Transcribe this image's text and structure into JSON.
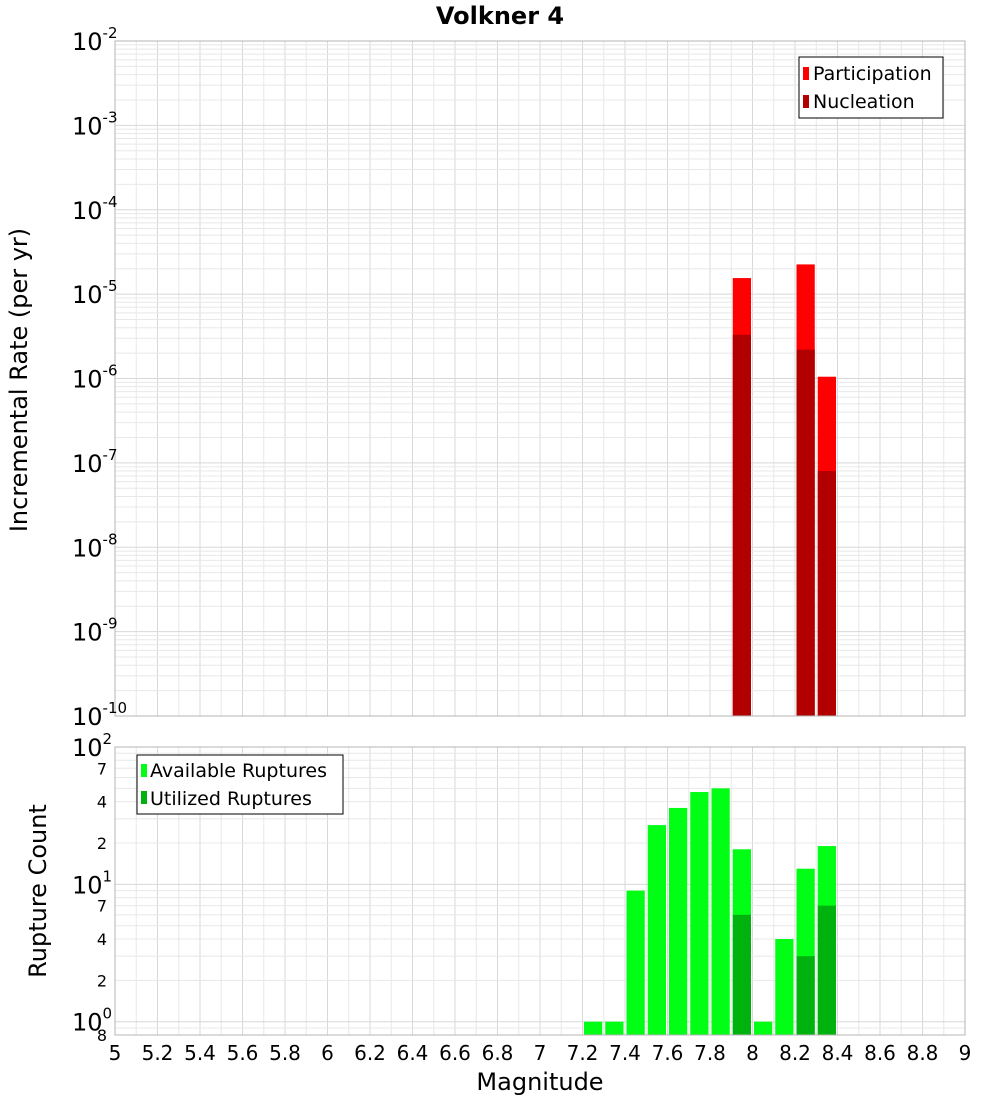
{
  "chart_data": [
    {
      "type": "bar",
      "title": "Volkner 4",
      "xlabel": "",
      "ylabel": "Incremental Rate (per yr)",
      "y_scale": "log",
      "ylim": [
        1e-10,
        0.01
      ],
      "xlim": [
        5,
        9
      ],
      "bin_width": 0.1,
      "grid": true,
      "legend_position": "top-right",
      "series": [
        {
          "name": "Participation",
          "color": "#ff0000",
          "points": [
            {
              "x": 7.95,
              "y": 1.55e-05
            },
            {
              "x": 8.25,
              "y": 2.25e-05
            },
            {
              "x": 8.35,
              "y": 1.05e-06
            }
          ]
        },
        {
          "name": "Nucleation",
          "color": "#b20000",
          "points": [
            {
              "x": 7.95,
              "y": 3.3e-06
            },
            {
              "x": 8.25,
              "y": 2.2e-06
            },
            {
              "x": 8.35,
              "y": 8e-08
            }
          ]
        }
      ]
    },
    {
      "type": "bar",
      "title": "",
      "xlabel": "Magnitude",
      "ylabel": "Rupture Count",
      "y_scale": "log",
      "ylim": [
        0.8,
        100
      ],
      "xlim": [
        5,
        9
      ],
      "bin_width": 0.1,
      "grid": true,
      "legend_position": "top-left",
      "series": [
        {
          "name": "Available Ruptures",
          "color": "#00ff14",
          "points": [
            {
              "x": 7.25,
              "y": 1
            },
            {
              "x": 7.35,
              "y": 1
            },
            {
              "x": 7.45,
              "y": 9
            },
            {
              "x": 7.55,
              "y": 27
            },
            {
              "x": 7.65,
              "y": 36
            },
            {
              "x": 7.75,
              "y": 47
            },
            {
              "x": 7.85,
              "y": 50
            },
            {
              "x": 7.95,
              "y": 18
            },
            {
              "x": 8.05,
              "y": 1
            },
            {
              "x": 8.15,
              "y": 4
            },
            {
              "x": 8.25,
              "y": 13
            },
            {
              "x": 8.35,
              "y": 19
            }
          ]
        },
        {
          "name": "Utilized Ruptures",
          "color": "#00b20e",
          "points": [
            {
              "x": 7.95,
              "y": 6
            },
            {
              "x": 8.25,
              "y": 3
            },
            {
              "x": 8.35,
              "y": 7
            }
          ]
        }
      ]
    }
  ],
  "x_ticks": [
    "5",
    "5.2",
    "5.4",
    "5.6",
    "5.8",
    "6",
    "6.2",
    "6.4",
    "6.6",
    "6.8",
    "7",
    "7.2",
    "7.4",
    "7.6",
    "7.8",
    "8",
    "8.2",
    "8.4",
    "8.6",
    "8.8",
    "9"
  ],
  "top_y_ticks": [
    {
      "base": "10",
      "exp": "-10"
    },
    {
      "base": "10",
      "exp": "-9"
    },
    {
      "base": "10",
      "exp": "-8"
    },
    {
      "base": "10",
      "exp": "-7"
    },
    {
      "base": "10",
      "exp": "-6"
    },
    {
      "base": "10",
      "exp": "-5"
    },
    {
      "base": "10",
      "exp": "-4"
    },
    {
      "base": "10",
      "exp": "-3"
    },
    {
      "base": "10",
      "exp": "-2"
    }
  ],
  "bottom_y_major_ticks": [
    {
      "value": 1,
      "base": "10",
      "exp": "0"
    },
    {
      "value": 10,
      "base": "10",
      "exp": "1"
    },
    {
      "value": 100,
      "base": "10",
      "exp": "2"
    }
  ],
  "bottom_y_minor_ticks": [
    {
      "value": 0.8,
      "label": "8"
    },
    {
      "value": 2,
      "label": "2"
    },
    {
      "value": 4,
      "label": "4"
    },
    {
      "value": 7,
      "label": "7"
    },
    {
      "value": 20,
      "label": "2"
    },
    {
      "value": 40,
      "label": "4"
    },
    {
      "value": 70,
      "label": "7"
    }
  ]
}
